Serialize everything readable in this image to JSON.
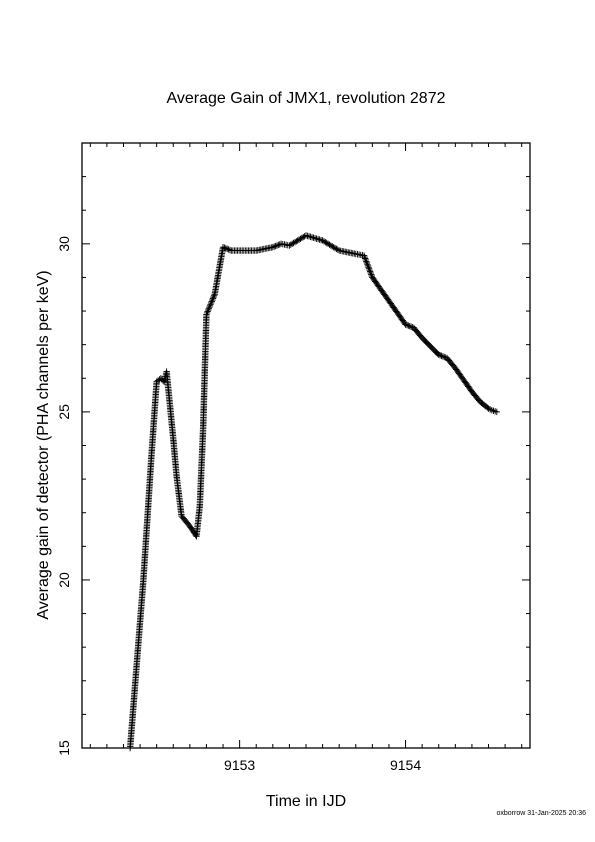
{
  "footer": {
    "credit": "oxborrow 31-Jan-2025 20:36"
  },
  "chart_data": {
    "type": "scatter",
    "title": "Average Gain of JMX1, revolution 2872",
    "xlabel": "Time in IJD",
    "ylabel": "Average gain of detector (PHA channels per keV)",
    "xlim": [
      9152.05,
      9154.75
    ],
    "ylim": [
      15,
      33
    ],
    "xticks": [
      9153,
      9154
    ],
    "yticks": [
      15,
      20,
      25,
      30
    ],
    "marker": "+",
    "color": "#000000",
    "grid": false,
    "series": [
      {
        "x": [
          9152.34,
          9152.42,
          9152.47,
          9152.5,
          9152.525,
          9152.545,
          9152.555,
          9152.56,
          9152.58,
          9152.6,
          9152.62,
          9152.65,
          9152.7,
          9152.74,
          9152.76,
          9152.78,
          9152.8,
          9152.85,
          9152.9,
          9152.95,
          9153.1,
          9153.2,
          9153.25,
          9153.3,
          9153.4,
          9153.5,
          9153.6,
          9153.7,
          9153.75,
          9153.8,
          9153.9,
          9154.0,
          9154.05,
          9154.1,
          9154.2,
          9154.25,
          9154.3,
          9154.4,
          9154.45,
          9154.5,
          9154.52,
          9154.55
        ],
        "y": [
          15.0,
          20.0,
          23.8,
          25.9,
          26.0,
          25.9,
          26.1,
          26.2,
          25.2,
          24.2,
          23.1,
          21.9,
          21.6,
          21.3,
          22.2,
          24.5,
          27.9,
          28.5,
          29.9,
          29.8,
          29.8,
          29.9,
          30.0,
          29.95,
          30.25,
          30.1,
          29.8,
          29.7,
          29.65,
          29.0,
          28.3,
          27.6,
          27.5,
          27.2,
          26.7,
          26.6,
          26.3,
          25.6,
          25.3,
          25.1,
          25.05,
          25.0
        ]
      }
    ]
  }
}
